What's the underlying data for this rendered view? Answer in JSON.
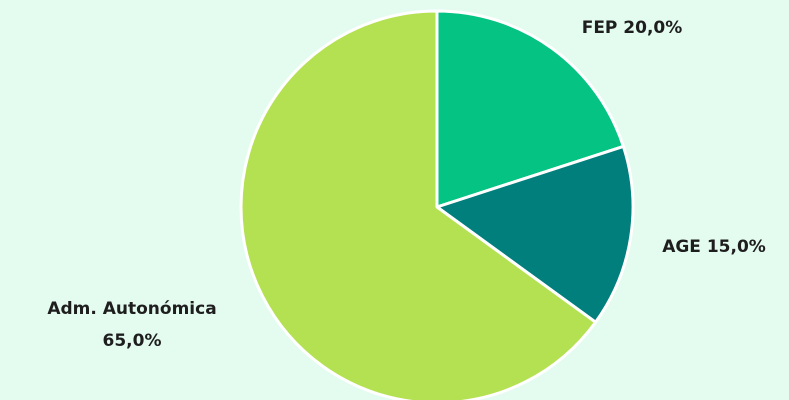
{
  "chart_data": {
    "type": "pie",
    "title": "",
    "slices": [
      {
        "label": "FEP",
        "value": 20.0,
        "value_label": "20,0%",
        "color": "#05C382"
      },
      {
        "label": "AGE",
        "value": 15.0,
        "value_label": "15,0%",
        "color": "#007F7C"
      },
      {
        "label": "Adm. Autonómica",
        "value": 65.0,
        "value_label": "65,0%",
        "color": "#B4E151"
      }
    ],
    "start_angle": "12 o'clock",
    "direction": "clockwise",
    "slice_border_color": "#FFFFFF",
    "background_color": "#E4FBF0"
  }
}
